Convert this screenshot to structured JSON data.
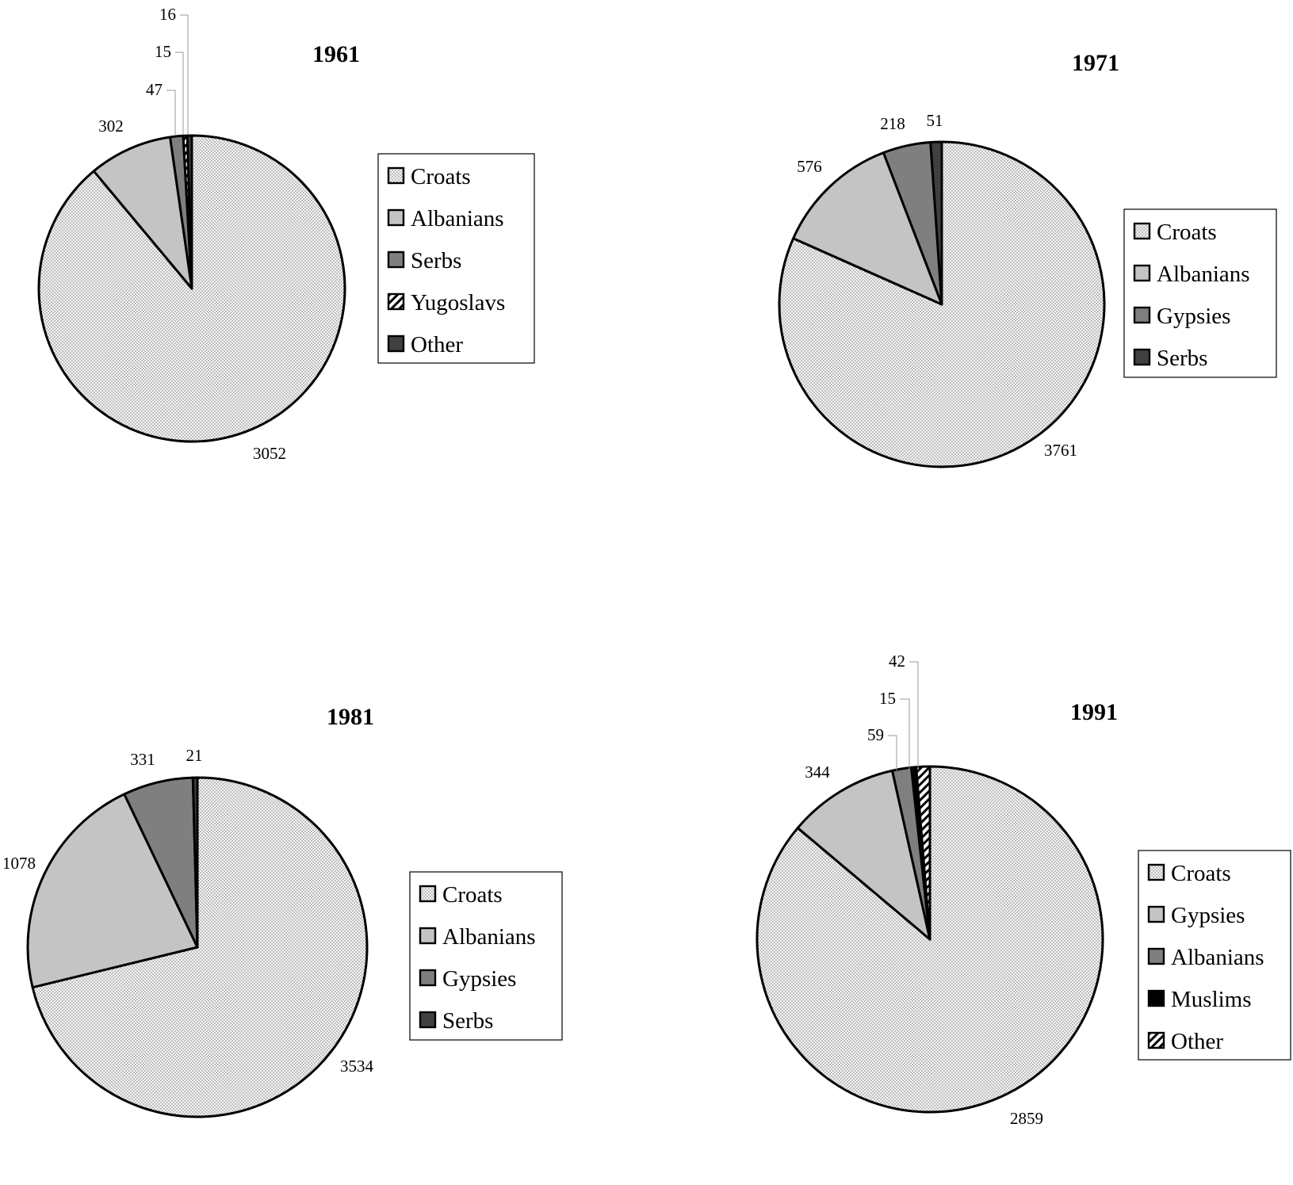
{
  "chart_data": [
    {
      "type": "pie",
      "title": "1961",
      "legend_position": "right",
      "slices": [
        {
          "label": "Croats",
          "value": 3052,
          "pattern": "dots"
        },
        {
          "label": "Albanians",
          "value": 302,
          "pattern": "light"
        },
        {
          "label": "Serbs",
          "value": 47,
          "pattern": "medium"
        },
        {
          "label": "Yugoslavs",
          "value": 15,
          "pattern": "hatch"
        },
        {
          "label": "Other",
          "value": 16,
          "pattern": "dark"
        }
      ],
      "labels": [
        "3052",
        "302",
        "47",
        "15",
        "16"
      ]
    },
    {
      "type": "pie",
      "title": "1971",
      "legend_position": "right",
      "slices": [
        {
          "label": "Croats",
          "value": 3761,
          "pattern": "dots"
        },
        {
          "label": "Albanians",
          "value": 576,
          "pattern": "light"
        },
        {
          "label": "Gypsies",
          "value": 218,
          "pattern": "medium"
        },
        {
          "label": "Serbs",
          "value": 51,
          "pattern": "dark"
        }
      ],
      "labels": [
        "3761",
        "576",
        "218",
        "51"
      ]
    },
    {
      "type": "pie",
      "title": "1981",
      "legend_position": "right",
      "slices": [
        {
          "label": "Croats",
          "value": 3534,
          "pattern": "dots"
        },
        {
          "label": "Albanians",
          "value": 1078,
          "pattern": "light"
        },
        {
          "label": "Gypsies",
          "value": 331,
          "pattern": "medium"
        },
        {
          "label": "Serbs",
          "value": 21,
          "pattern": "dark"
        }
      ],
      "labels": [
        "3534",
        "1078",
        "331",
        "21"
      ]
    },
    {
      "type": "pie",
      "title": "1991",
      "legend_position": "right",
      "slices": [
        {
          "label": "Croats",
          "value": 2859,
          "pattern": "dots"
        },
        {
          "label": "Gypsies",
          "value": 344,
          "pattern": "light"
        },
        {
          "label": "Albanians",
          "value": 59,
          "pattern": "medium"
        },
        {
          "label": "Muslims",
          "value": 15,
          "pattern": "black"
        },
        {
          "label": "Other",
          "value": 42,
          "pattern": "hatch"
        }
      ],
      "labels": [
        "2859",
        "344",
        "59",
        "15",
        "42"
      ]
    }
  ]
}
